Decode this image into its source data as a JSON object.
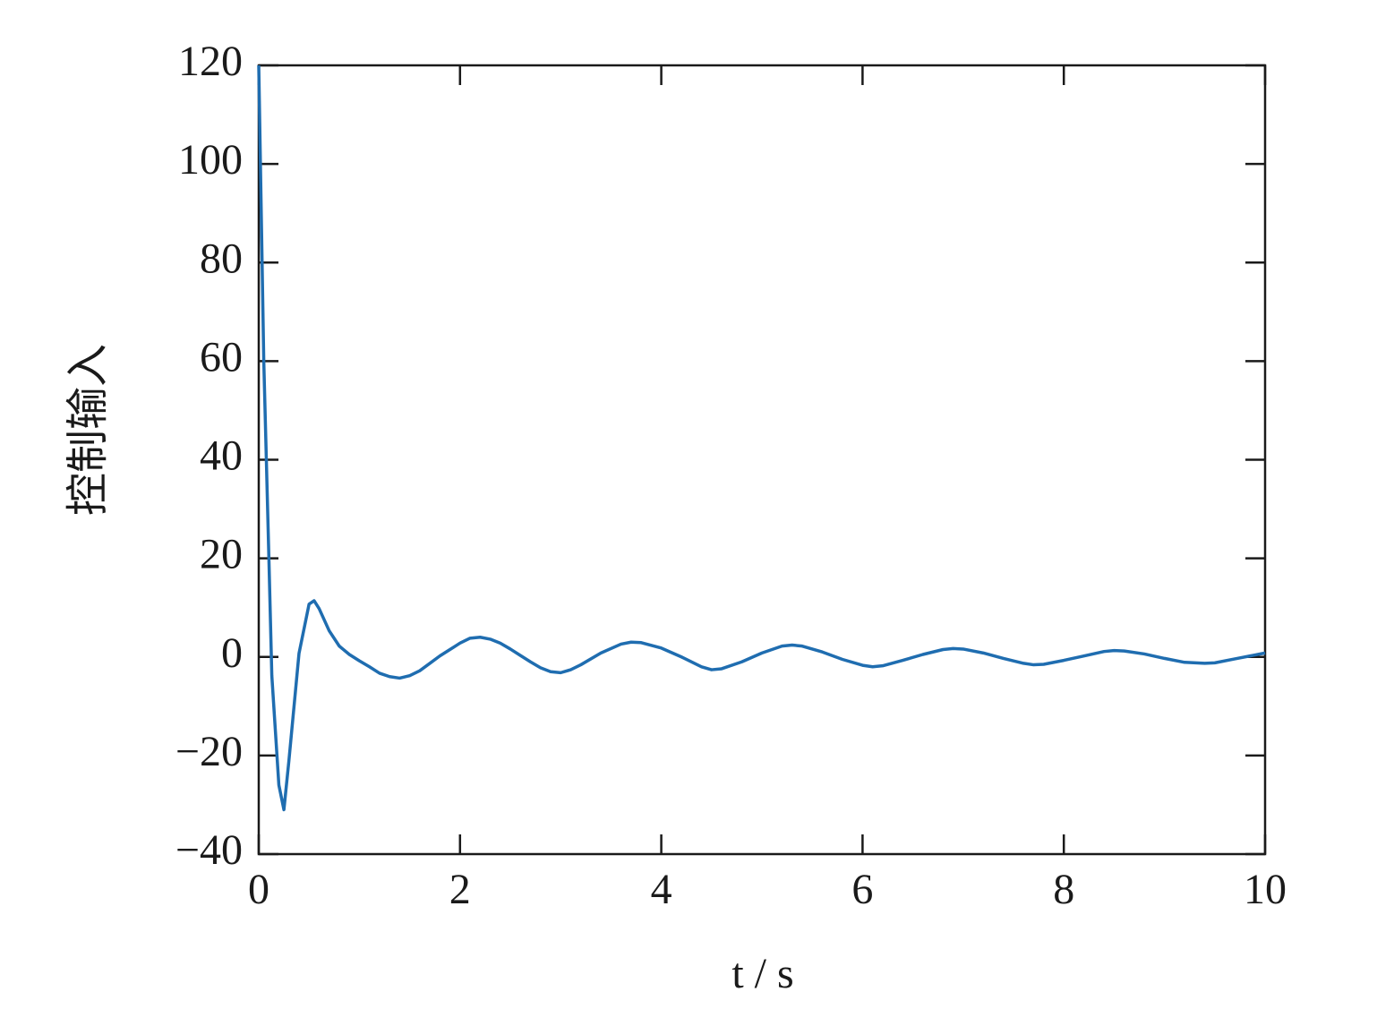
{
  "chart_data": {
    "type": "line",
    "xlabel": "t / s",
    "ylabel": "控制输入",
    "x": [
      0,
      0.05,
      0.1,
      0.13,
      0.2,
      0.25,
      0.3,
      0.4,
      0.5,
      0.55,
      0.6,
      0.7,
      0.8,
      0.9,
      1.0,
      1.1,
      1.2,
      1.3,
      1.4,
      1.5,
      1.6,
      1.7,
      1.8,
      1.9,
      2.0,
      2.1,
      2.2,
      2.3,
      2.4,
      2.5,
      2.6,
      2.7,
      2.8,
      2.9,
      3.0,
      3.1,
      3.2,
      3.4,
      3.6,
      3.7,
      3.8,
      4.0,
      4.2,
      4.4,
      4.5,
      4.6,
      4.8,
      5.0,
      5.2,
      5.3,
      5.4,
      5.6,
      5.8,
      6.0,
      6.1,
      6.2,
      6.4,
      6.6,
      6.8,
      6.9,
      7.0,
      7.2,
      7.4,
      7.6,
      7.7,
      7.8,
      8.0,
      8.2,
      8.4,
      8.5,
      8.6,
      8.8,
      9.0,
      9.2,
      9.4,
      9.5,
      9.7,
      9.9,
      10.0
    ],
    "series": [
      {
        "color": "#1f6db0",
        "values": [
          120,
          60,
          20.7,
          -3.8,
          -26,
          -31,
          -21,
          0.7,
          10.7,
          11.4,
          9.8,
          5.3,
          2.2,
          0.5,
          -0.8,
          -2,
          -3.3,
          -4,
          -4.3,
          -3.8,
          -2.8,
          -1.3,
          0.2,
          1.5,
          2.8,
          3.8,
          4,
          3.6,
          2.8,
          1.6,
          0.3,
          -1,
          -2.2,
          -3,
          -3.2,
          -2.6,
          -1.6,
          0.8,
          2.6,
          3,
          2.9,
          1.8,
          0,
          -2,
          -2.6,
          -2.4,
          -1,
          0.8,
          2.2,
          2.4,
          2.2,
          1,
          -0.5,
          -1.7,
          -2,
          -1.8,
          -0.7,
          0.5,
          1.5,
          1.7,
          1.6,
          0.8,
          -0.3,
          -1.3,
          -1.6,
          -1.5,
          -0.7,
          0.2,
          1.1,
          1.3,
          1.2,
          0.6,
          -0.3,
          -1.1,
          -1.3,
          -1.2,
          -0.4,
          0.4,
          0.8
        ]
      }
    ],
    "xlim": [
      0,
      10
    ],
    "xticks": [
      0,
      2,
      4,
      6,
      8,
      10
    ],
    "ylim": [
      -40,
      120
    ],
    "yticks": [
      {
        "value": -40,
        "label": "−40"
      },
      {
        "value": -20,
        "label": "−20"
      },
      0,
      20,
      40,
      60,
      80,
      100,
      120
    ],
    "grid": false
  }
}
